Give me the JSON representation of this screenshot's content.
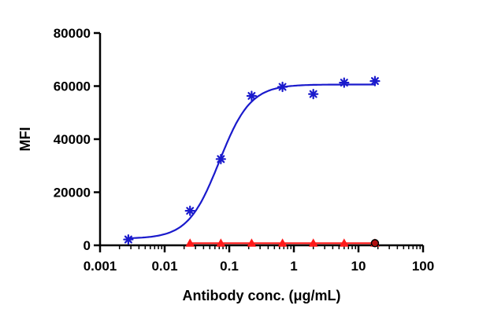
{
  "chart_data": {
    "type": "scatter",
    "title": "",
    "xlabel": "Antibody conc. (μg/mL)",
    "ylabel": "MFI",
    "xscale": "log",
    "xlim": [
      0.001,
      100
    ],
    "ylim": [
      0,
      80000
    ],
    "x_ticks": [
      0.001,
      0.01,
      0.1,
      1,
      10,
      100
    ],
    "x_tick_labels": [
      "0.001",
      "0.01",
      "0.1",
      "1",
      "10",
      "100"
    ],
    "y_ticks": [
      0,
      20000,
      40000,
      60000,
      80000
    ],
    "y_tick_labels": [
      "0",
      "20000",
      "40000",
      "60000",
      "80000"
    ],
    "grid": false,
    "legend": "none",
    "series": [
      {
        "marker": "asterisk",
        "color": "#1a1acc",
        "fit": "sigmoidal",
        "x": [
          0.00274,
          0.0247,
          0.0741,
          0.222,
          0.667,
          2.0,
          6.0,
          18.0
        ],
        "y": [
          2200,
          13000,
          32500,
          56300,
          59700,
          57000,
          61300,
          61900
        ]
      },
      {
        "marker": "triangle",
        "color": "#ff1a1a",
        "fit": "flat",
        "x": [
          0.0247,
          0.0741,
          0.222,
          0.667,
          2.0,
          6.0,
          18.0
        ],
        "y": [
          800,
          800,
          800,
          800,
          800,
          800,
          800
        ]
      },
      {
        "marker": "circle",
        "color": "#000000",
        "fit": "none",
        "x": [
          18.0
        ],
        "y": [
          800
        ]
      }
    ]
  }
}
